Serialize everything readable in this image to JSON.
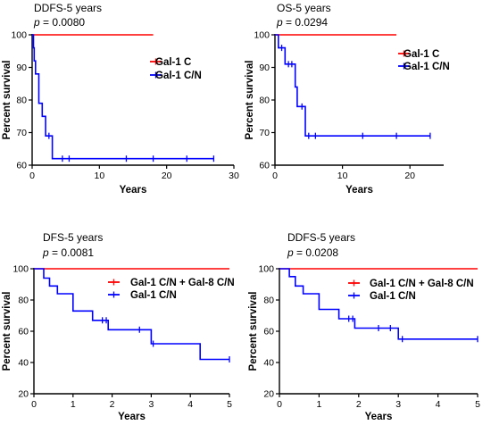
{
  "chart_data": [
    {
      "type": "line",
      "chart_subtype": "kaplan-meier",
      "title": "DDFS-5 years",
      "p_label": "p",
      "p_value": "= 0.0080",
      "xlabel": "Years",
      "ylabel": "Percent survival",
      "xlim": [
        0,
        30
      ],
      "ylim": [
        60,
        100
      ],
      "x_ticks": [
        0,
        10,
        20,
        30
      ],
      "y_ticks": [
        60,
        70,
        80,
        90,
        100
      ],
      "grid": false,
      "legend_position": "top-right",
      "series": [
        {
          "name": "Gal-1 C",
          "color": "#ff0000",
          "points": [
            [
              0,
              100
            ],
            [
              18,
              100
            ]
          ],
          "censors": []
        },
        {
          "name": "Gal-1 C/N",
          "color": "#0000ff",
          "points": [
            [
              0,
              100
            ],
            [
              0.2,
              100
            ],
            [
              0.2,
              96
            ],
            [
              0.3,
              96
            ],
            [
              0.3,
              92
            ],
            [
              0.5,
              92
            ],
            [
              0.5,
              88
            ],
            [
              1.0,
              88
            ],
            [
              1.0,
              79
            ],
            [
              1.5,
              79
            ],
            [
              1.5,
              75
            ],
            [
              2.0,
              75
            ],
            [
              2.0,
              69
            ],
            [
              3.0,
              69
            ],
            [
              3.0,
              62
            ],
            [
              27,
              62
            ]
          ],
          "censors": [
            [
              2.5,
              69
            ],
            [
              4.5,
              62
            ],
            [
              5.5,
              62
            ],
            [
              14,
              62
            ],
            [
              18,
              62
            ],
            [
              23,
              62
            ],
            [
              27,
              62
            ]
          ]
        }
      ]
    },
    {
      "type": "line",
      "chart_subtype": "kaplan-meier",
      "title": "OS-5 years",
      "p_label": "p",
      "p_value": "= 0.0294",
      "xlabel": "Years",
      "ylabel": "Percent survival",
      "xlim": [
        0,
        25
      ],
      "ylim": [
        60,
        100
      ],
      "x_ticks": [
        0,
        10,
        20
      ],
      "y_ticks": [
        60,
        70,
        80,
        90,
        100
      ],
      "grid": false,
      "legend_position": "top-right",
      "series": [
        {
          "name": "Gal-1 C",
          "color": "#ff0000",
          "points": [
            [
              0,
              100
            ],
            [
              18,
              100
            ]
          ],
          "censors": []
        },
        {
          "name": "Gal-1 C/N",
          "color": "#0000ff",
          "points": [
            [
              0,
              100
            ],
            [
              0.5,
              100
            ],
            [
              0.5,
              96
            ],
            [
              1.5,
              96
            ],
            [
              1.5,
              91
            ],
            [
              3.0,
              91
            ],
            [
              3.0,
              84
            ],
            [
              3.3,
              84
            ],
            [
              3.3,
              78
            ],
            [
              4.5,
              78
            ],
            [
              4.5,
              69
            ],
            [
              23,
              69
            ]
          ],
          "censors": [
            [
              1.0,
              96
            ],
            [
              2.0,
              91
            ],
            [
              2.5,
              91
            ],
            [
              4.0,
              78
            ],
            [
              5.0,
              69
            ],
            [
              6.0,
              69
            ],
            [
              13,
              69
            ],
            [
              18,
              69
            ],
            [
              23,
              69
            ]
          ]
        }
      ]
    },
    {
      "type": "line",
      "chart_subtype": "kaplan-meier",
      "title": "DFS-5 years",
      "p_label": "p",
      "p_value": "= 0.0081",
      "xlabel": "Years",
      "ylabel": "Percent survival",
      "xlim": [
        0,
        5
      ],
      "ylim": [
        20,
        100
      ],
      "x_ticks": [
        0,
        1,
        2,
        3,
        4,
        5
      ],
      "y_ticks": [
        20,
        40,
        60,
        80,
        100
      ],
      "grid": false,
      "legend_position": "top-right",
      "series": [
        {
          "name": "Gal-1 C/N + Gal-8 C/N",
          "color": "#ff0000",
          "points": [
            [
              0,
              100
            ],
            [
              5,
              100
            ]
          ],
          "censors": []
        },
        {
          "name": "Gal-1 C/N",
          "color": "#0000ff",
          "points": [
            [
              0,
              100
            ],
            [
              0.25,
              100
            ],
            [
              0.25,
              94
            ],
            [
              0.4,
              94
            ],
            [
              0.4,
              89
            ],
            [
              0.6,
              89
            ],
            [
              0.6,
              84
            ],
            [
              1.0,
              84
            ],
            [
              1.0,
              73
            ],
            [
              1.5,
              73
            ],
            [
              1.5,
              67
            ],
            [
              1.9,
              67
            ],
            [
              1.9,
              61
            ],
            [
              3.0,
              61
            ],
            [
              3.0,
              52
            ],
            [
              4.25,
              52
            ],
            [
              4.25,
              42
            ],
            [
              5,
              42
            ]
          ],
          "censors": [
            [
              1.75,
              67
            ],
            [
              1.85,
              67
            ],
            [
              2.7,
              61
            ],
            [
              3.05,
              52
            ],
            [
              5,
              42
            ]
          ]
        }
      ]
    },
    {
      "type": "line",
      "chart_subtype": "kaplan-meier",
      "title": "DDFS-5 years",
      "p_label": "p",
      "p_value": "= 0.0208",
      "xlabel": "Years",
      "ylabel": "Percent survival",
      "xlim": [
        0,
        5
      ],
      "ylim": [
        20,
        100
      ],
      "x_ticks": [
        0,
        1,
        2,
        3,
        4,
        5
      ],
      "y_ticks": [
        20,
        40,
        60,
        80,
        100
      ],
      "grid": false,
      "legend_position": "top-right",
      "series": [
        {
          "name": "Gal-1 C/N + Gal-8 C/N",
          "color": "#ff0000",
          "points": [
            [
              0,
              100
            ],
            [
              5,
              100
            ]
          ],
          "censors": []
        },
        {
          "name": "Gal-1 C/N",
          "color": "#0000ff",
          "points": [
            [
              0,
              100
            ],
            [
              0.25,
              100
            ],
            [
              0.25,
              95
            ],
            [
              0.4,
              95
            ],
            [
              0.4,
              89
            ],
            [
              0.6,
              89
            ],
            [
              0.6,
              84
            ],
            [
              1.0,
              84
            ],
            [
              1.0,
              74
            ],
            [
              1.5,
              74
            ],
            [
              1.5,
              68
            ],
            [
              1.9,
              68
            ],
            [
              1.9,
              62
            ],
            [
              3.0,
              62
            ],
            [
              3.0,
              55
            ],
            [
              5,
              55
            ]
          ],
          "censors": [
            [
              1.75,
              68
            ],
            [
              1.85,
              68
            ],
            [
              2.5,
              62
            ],
            [
              2.8,
              62
            ],
            [
              3.1,
              55
            ],
            [
              5,
              55
            ]
          ]
        }
      ]
    }
  ]
}
